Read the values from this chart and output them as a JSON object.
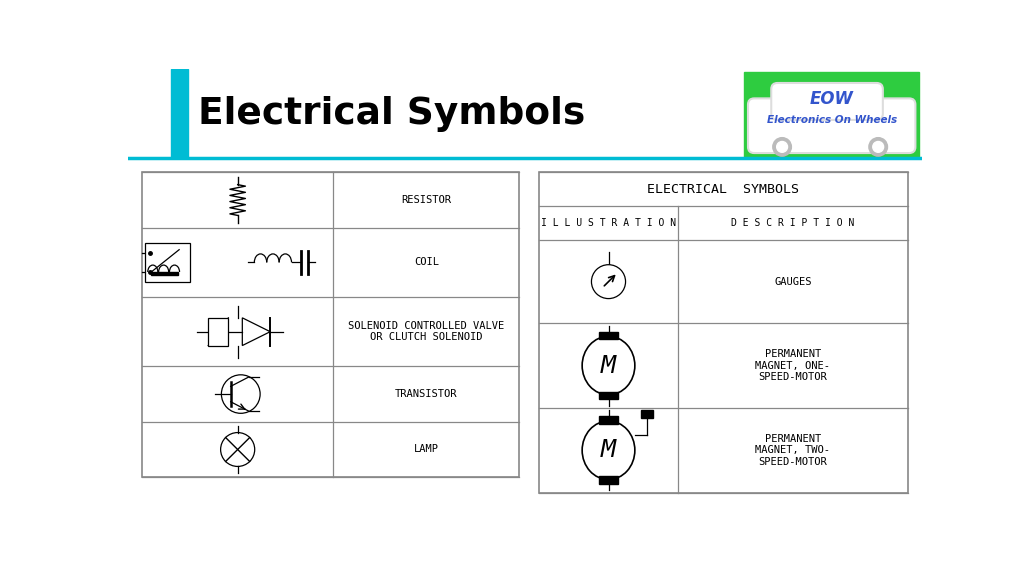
{
  "title": "Electrical Symbols",
  "background_color": "#ffffff",
  "cyan_line_color": "#00bcd4",
  "blue_rect_color": "#00bcd4",
  "left_table": {
    "rows": [
      {
        "label": "RESISTOR"
      },
      {
        "label": "COIL"
      },
      {
        "label": "SOLENOID CONTROLLED VALVE\nOR CLUTCH SOLENOID"
      },
      {
        "label": "TRANSISTOR"
      },
      {
        "label": "LAMP"
      }
    ]
  },
  "right_table": {
    "title": "ELECTRICAL  SYMBOLS",
    "col1": "I L L U S T R A T I O N",
    "col2": "D E S C R I P T I O N",
    "rows": [
      {
        "description": "GAUGES"
      },
      {
        "description": "PERMANENT\nMAGNET, ONE-\nSPEED-MOTOR"
      },
      {
        "description": "PERMANENT\nMAGNET, TWO-\nSPEED-MOTOR"
      }
    ]
  },
  "eow_bg": "#2ecc40",
  "eow_text1": "EOW",
  "eow_text2": "Electronics On Wheels",
  "table_edge": "#888888",
  "symbol_color": "#000000"
}
